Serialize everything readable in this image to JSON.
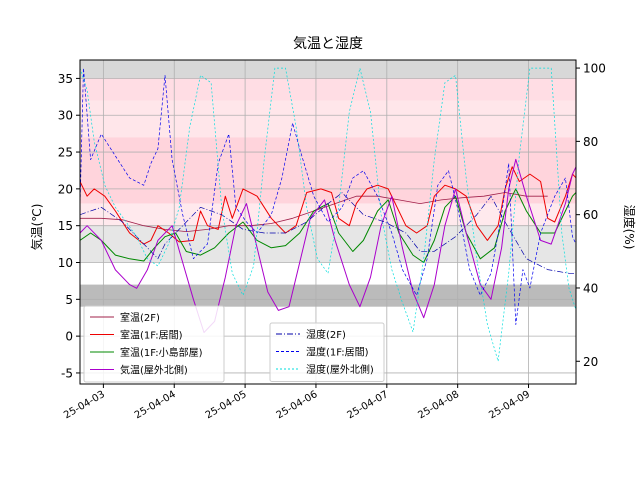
{
  "chart_data": {
    "type": "line",
    "title": "気温と湿度",
    "ylabel_left": "気温(℃)",
    "ylabel_right": "湿度(%)",
    "xlim": [
      0,
      7.0
    ],
    "ylim_left": [
      -6.5,
      37.5
    ],
    "ylim_right": [
      13.8,
      102.2
    ],
    "x_ticks": [
      {
        "x": 0.33,
        "label": "25-04-03"
      },
      {
        "x": 1.33,
        "label": "25-04-04"
      },
      {
        "x": 2.33,
        "label": "25-04-05"
      },
      {
        "x": 3.33,
        "label": "25-04-06"
      },
      {
        "x": 4.33,
        "label": "25-04-07"
      },
      {
        "x": 5.33,
        "label": "25-04-08"
      },
      {
        "x": 6.33,
        "label": "25-04-09"
      }
    ],
    "y_ticks_left": [
      -5,
      0,
      5,
      10,
      15,
      20,
      25,
      30,
      35
    ],
    "y_ticks_right": [
      20,
      40,
      60,
      80,
      100
    ],
    "grid": true,
    "bands": [
      {
        "from": 32,
        "to": 35,
        "color": "#ffdde4"
      },
      {
        "from": 27,
        "to": 32,
        "color": "#ffe6ea"
      },
      {
        "from": 18,
        "to": 27,
        "color": "#ffd4dc"
      },
      {
        "from": 15,
        "to": 18,
        "color": "#ffe9ed"
      },
      {
        "from": 10,
        "to": 15,
        "color": "#e6e6e6"
      },
      {
        "from": 4,
        "to": 7,
        "color": "#bbbbbb"
      },
      {
        "from": 35,
        "to": 37.5,
        "color": "#d8d8d8"
      }
    ],
    "legend_left_position": "lower-left",
    "legend_right_position": "lower-center",
    "series": [
      {
        "name": "室温(2F)",
        "axis": "left",
        "color": "#a0204a",
        "dash": "",
        "width": 0.8,
        "points": [
          [
            0,
            16
          ],
          [
            0.3,
            16
          ],
          [
            0.6,
            15.8
          ],
          [
            0.9,
            15
          ],
          [
            1.2,
            14.5
          ],
          [
            1.5,
            14.2
          ],
          [
            1.8,
            14.5
          ],
          [
            2.1,
            15
          ],
          [
            2.4,
            15
          ],
          [
            2.7,
            15.3
          ],
          [
            3.0,
            16
          ],
          [
            3.3,
            17
          ],
          [
            3.6,
            18
          ],
          [
            3.9,
            19
          ],
          [
            4.2,
            19
          ],
          [
            4.5,
            18.5
          ],
          [
            4.8,
            18
          ],
          [
            5.1,
            18.5
          ],
          [
            5.4,
            18.8
          ],
          [
            5.7,
            19
          ],
          [
            6.0,
            19.5
          ],
          [
            6.3,
            19
          ],
          [
            6.6,
            19
          ]
        ]
      },
      {
        "name": "室温(1F:居間)",
        "axis": "left",
        "color": "#ee0000",
        "dash": "",
        "width": 1.0,
        "points": [
          [
            0,
            21
          ],
          [
            0.1,
            19
          ],
          [
            0.2,
            20
          ],
          [
            0.35,
            19
          ],
          [
            0.5,
            17
          ],
          [
            0.7,
            14
          ],
          [
            0.9,
            12.5
          ],
          [
            1.0,
            13
          ],
          [
            1.1,
            15
          ],
          [
            1.25,
            14
          ],
          [
            1.4,
            12.8
          ],
          [
            1.6,
            13
          ],
          [
            1.7,
            17
          ],
          [
            1.8,
            15
          ],
          [
            1.95,
            14.5
          ],
          [
            2.05,
            19
          ],
          [
            2.15,
            16
          ],
          [
            2.3,
            20
          ],
          [
            2.5,
            19
          ],
          [
            2.7,
            16
          ],
          [
            2.9,
            14
          ],
          [
            3.05,
            15
          ],
          [
            3.2,
            19.5
          ],
          [
            3.4,
            20
          ],
          [
            3.55,
            19.5
          ],
          [
            3.65,
            16
          ],
          [
            3.8,
            15
          ],
          [
            3.9,
            18
          ],
          [
            4.05,
            20
          ],
          [
            4.2,
            20.5
          ],
          [
            4.35,
            20
          ],
          [
            4.45,
            18
          ],
          [
            4.6,
            15
          ],
          [
            4.75,
            14
          ],
          [
            4.9,
            15
          ],
          [
            5.0,
            19
          ],
          [
            5.15,
            20.5
          ],
          [
            5.3,
            20
          ],
          [
            5.45,
            19
          ],
          [
            5.6,
            15
          ],
          [
            5.75,
            13
          ],
          [
            5.9,
            15
          ],
          [
            6.0,
            20
          ],
          [
            6.1,
            23
          ],
          [
            6.2,
            21
          ],
          [
            6.35,
            22
          ],
          [
            6.5,
            21
          ],
          [
            6.6,
            16
          ],
          [
            6.7,
            15.5
          ],
          [
            6.85,
            19
          ],
          [
            6.95,
            22
          ],
          [
            7.0,
            21.5
          ]
        ]
      },
      {
        "name": "室温(1F:小島部屋)",
        "axis": "left",
        "color": "#008800",
        "dash": "",
        "width": 1.0,
        "points": [
          [
            0,
            13
          ],
          [
            0.15,
            14
          ],
          [
            0.3,
            13
          ],
          [
            0.5,
            11
          ],
          [
            0.7,
            10.5
          ],
          [
            0.9,
            10.2
          ],
          [
            1.05,
            12
          ],
          [
            1.2,
            13.5
          ],
          [
            1.35,
            14
          ],
          [
            1.5,
            11.5
          ],
          [
            1.7,
            11
          ],
          [
            1.9,
            12
          ],
          [
            2.1,
            14
          ],
          [
            2.3,
            15.5
          ],
          [
            2.5,
            13
          ],
          [
            2.7,
            12
          ],
          [
            2.9,
            12.3
          ],
          [
            3.1,
            14
          ],
          [
            3.3,
            17
          ],
          [
            3.5,
            18
          ],
          [
            3.65,
            14
          ],
          [
            3.85,
            11.5
          ],
          [
            4.0,
            13
          ],
          [
            4.2,
            17
          ],
          [
            4.35,
            18.5
          ],
          [
            4.5,
            14
          ],
          [
            4.7,
            11
          ],
          [
            4.85,
            10
          ],
          [
            5.0,
            13
          ],
          [
            5.15,
            17.5
          ],
          [
            5.3,
            19
          ],
          [
            5.45,
            14
          ],
          [
            5.65,
            10.5
          ],
          [
            5.85,
            12
          ],
          [
            6.0,
            17
          ],
          [
            6.15,
            20
          ],
          [
            6.3,
            17
          ],
          [
            6.5,
            14
          ],
          [
            6.7,
            14
          ],
          [
            6.85,
            17
          ],
          [
            6.95,
            19
          ],
          [
            7.0,
            19.5
          ]
        ]
      },
      {
        "name": "気温(屋外北側)",
        "axis": "left",
        "color": "#aa00cc",
        "dash": "",
        "width": 1.0,
        "points": [
          [
            0,
            14
          ],
          [
            0.1,
            15
          ],
          [
            0.3,
            13
          ],
          [
            0.5,
            9
          ],
          [
            0.7,
            7
          ],
          [
            0.8,
            6.5
          ],
          [
            0.95,
            9
          ],
          [
            1.1,
            13
          ],
          [
            1.3,
            15
          ],
          [
            1.45,
            10
          ],
          [
            1.6,
            5
          ],
          [
            1.75,
            0.5
          ],
          [
            1.9,
            2
          ],
          [
            2.05,
            8
          ],
          [
            2.2,
            15
          ],
          [
            2.35,
            18
          ],
          [
            2.5,
            12
          ],
          [
            2.65,
            6
          ],
          [
            2.8,
            3.5
          ],
          [
            2.95,
            4
          ],
          [
            3.1,
            10
          ],
          [
            3.25,
            16
          ],
          [
            3.45,
            18.5
          ],
          [
            3.6,
            13
          ],
          [
            3.8,
            7
          ],
          [
            3.95,
            4
          ],
          [
            4.1,
            8
          ],
          [
            4.25,
            15
          ],
          [
            4.4,
            19
          ],
          [
            4.55,
            12
          ],
          [
            4.7,
            6
          ],
          [
            4.85,
            2.5
          ],
          [
            5.0,
            7
          ],
          [
            5.15,
            15
          ],
          [
            5.3,
            20
          ],
          [
            5.45,
            14
          ],
          [
            5.65,
            7
          ],
          [
            5.8,
            5
          ],
          [
            5.95,
            12
          ],
          [
            6.05,
            20
          ],
          [
            6.15,
            24
          ],
          [
            6.3,
            19
          ],
          [
            6.5,
            13
          ],
          [
            6.65,
            12.5
          ],
          [
            6.85,
            18
          ],
          [
            6.95,
            22
          ],
          [
            7.0,
            23
          ]
        ]
      },
      {
        "name": "湿度(2F)",
        "axis": "right",
        "color": "#0000aa",
        "dash": "6,2,1,2",
        "width": 0.7,
        "points": [
          [
            0,
            60
          ],
          [
            0.3,
            62
          ],
          [
            0.6,
            58
          ],
          [
            0.9,
            52
          ],
          [
            1.1,
            48
          ],
          [
            1.2,
            52
          ],
          [
            1.4,
            56
          ],
          [
            1.7,
            62
          ],
          [
            2.0,
            60
          ],
          [
            2.3,
            56
          ],
          [
            2.6,
            55
          ],
          [
            2.9,
            55
          ],
          [
            3.2,
            58
          ],
          [
            3.5,
            63
          ],
          [
            3.7,
            66
          ],
          [
            4.0,
            60
          ],
          [
            4.3,
            58
          ],
          [
            4.6,
            55
          ],
          [
            4.8,
            50
          ],
          [
            5.0,
            50
          ],
          [
            5.3,
            54
          ],
          [
            5.6,
            60
          ],
          [
            5.8,
            65
          ],
          [
            6.0,
            58
          ],
          [
            6.3,
            48
          ],
          [
            6.6,
            45
          ],
          [
            6.9,
            44
          ],
          [
            7.0,
            44
          ]
        ]
      },
      {
        "name": "湿度(1F:居間)",
        "axis": "right",
        "color": "#0000ee",
        "dash": "3,2",
        "width": 0.7,
        "points": [
          [
            0,
            62
          ],
          [
            0.05,
            100
          ],
          [
            0.15,
            75
          ],
          [
            0.3,
            82
          ],
          [
            0.5,
            76
          ],
          [
            0.7,
            70
          ],
          [
            0.9,
            68
          ],
          [
            1.0,
            74
          ],
          [
            1.1,
            78
          ],
          [
            1.2,
            98
          ],
          [
            1.3,
            75
          ],
          [
            1.45,
            60
          ],
          [
            1.6,
            48
          ],
          [
            1.8,
            52
          ],
          [
            1.95,
            74
          ],
          [
            2.1,
            82
          ],
          [
            2.2,
            62
          ],
          [
            2.35,
            58
          ],
          [
            2.5,
            55
          ],
          [
            2.7,
            60
          ],
          [
            2.85,
            70
          ],
          [
            3.0,
            85
          ],
          [
            3.1,
            78
          ],
          [
            3.3,
            65
          ],
          [
            3.5,
            58
          ],
          [
            3.7,
            62
          ],
          [
            3.85,
            70
          ],
          [
            4.0,
            72
          ],
          [
            4.2,
            65
          ],
          [
            4.4,
            55
          ],
          [
            4.55,
            45
          ],
          [
            4.75,
            38
          ],
          [
            4.9,
            48
          ],
          [
            5.05,
            68
          ],
          [
            5.2,
            72
          ],
          [
            5.35,
            60
          ],
          [
            5.5,
            45
          ],
          [
            5.65,
            38
          ],
          [
            5.8,
            44
          ],
          [
            5.95,
            60
          ],
          [
            6.05,
            74
          ],
          [
            6.15,
            30
          ],
          [
            6.25,
            45
          ],
          [
            6.35,
            40
          ],
          [
            6.5,
            55
          ],
          [
            6.7,
            65
          ],
          [
            6.85,
            70
          ],
          [
            6.95,
            54
          ],
          [
            7.0,
            52
          ]
        ]
      },
      {
        "name": "湿度(屋外北側)",
        "axis": "right",
        "color": "#00dddd",
        "dash": "2,2",
        "width": 0.7,
        "points": [
          [
            0,
            100
          ],
          [
            0.1,
            94
          ],
          [
            0.2,
            80
          ],
          [
            0.35,
            68
          ],
          [
            0.5,
            62
          ],
          [
            0.65,
            58
          ],
          [
            0.8,
            54
          ],
          [
            0.95,
            48
          ],
          [
            1.1,
            46
          ],
          [
            1.25,
            52
          ],
          [
            1.4,
            62
          ],
          [
            1.55,
            84
          ],
          [
            1.7,
            98
          ],
          [
            1.85,
            96
          ],
          [
            2.0,
            62
          ],
          [
            2.15,
            44
          ],
          [
            2.3,
            38
          ],
          [
            2.45,
            46
          ],
          [
            2.6,
            75
          ],
          [
            2.75,
            100
          ],
          [
            2.9,
            100
          ],
          [
            3.05,
            84
          ],
          [
            3.2,
            62
          ],
          [
            3.35,
            48
          ],
          [
            3.5,
            44
          ],
          [
            3.65,
            62
          ],
          [
            3.8,
            88
          ],
          [
            3.95,
            100
          ],
          [
            4.1,
            88
          ],
          [
            4.25,
            60
          ],
          [
            4.4,
            45
          ],
          [
            4.55,
            36
          ],
          [
            4.7,
            28
          ],
          [
            4.85,
            48
          ],
          [
            5.0,
            75
          ],
          [
            5.15,
            96
          ],
          [
            5.3,
            98
          ],
          [
            5.45,
            70
          ],
          [
            5.6,
            48
          ],
          [
            5.75,
            30
          ],
          [
            5.9,
            20
          ],
          [
            6.05,
            44
          ],
          [
            6.2,
            76
          ],
          [
            6.35,
            100
          ],
          [
            6.5,
            100
          ],
          [
            6.65,
            100
          ],
          [
            6.8,
            55
          ],
          [
            6.9,
            40
          ],
          [
            7.0,
            34
          ]
        ]
      }
    ]
  }
}
